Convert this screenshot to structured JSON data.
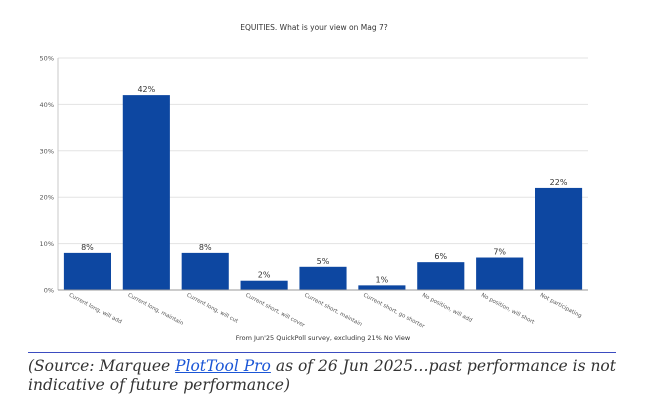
{
  "chart_data": {
    "type": "bar",
    "title": "EQUITIES. What is your view on Mag 7?",
    "xlabel": "From Jun'25 QuickPoll survey, excluding 21% No View",
    "ylabel": "",
    "ylim": [
      0,
      50
    ],
    "y_ticks": [
      0,
      10,
      20,
      30,
      40,
      50
    ],
    "y_tick_labels": [
      "0%",
      "10%",
      "20%",
      "30%",
      "40%",
      "50%"
    ],
    "categories": [
      "Current long, will add",
      "Current long, maintain",
      "Current long, will cut",
      "Current short, will cover",
      "Current short, maintain",
      "Current short, go shorter",
      "No position, will add",
      "No position, will short",
      "Not participating"
    ],
    "values": [
      8,
      42,
      8,
      2,
      5,
      1,
      6,
      7,
      22
    ],
    "value_labels": [
      "8%",
      "42%",
      "8%",
      "2%",
      "5%",
      "1%",
      "6%",
      "7%",
      "22%"
    ],
    "grid": true,
    "legend": "none",
    "bar_color": "#0d47a1"
  },
  "source": {
    "prefix": "(Source: Marquee ",
    "link_text": "PlotTool Pro",
    "suffix": " as of 26 Jun 2025…past performance is not indicative of future performance)"
  }
}
